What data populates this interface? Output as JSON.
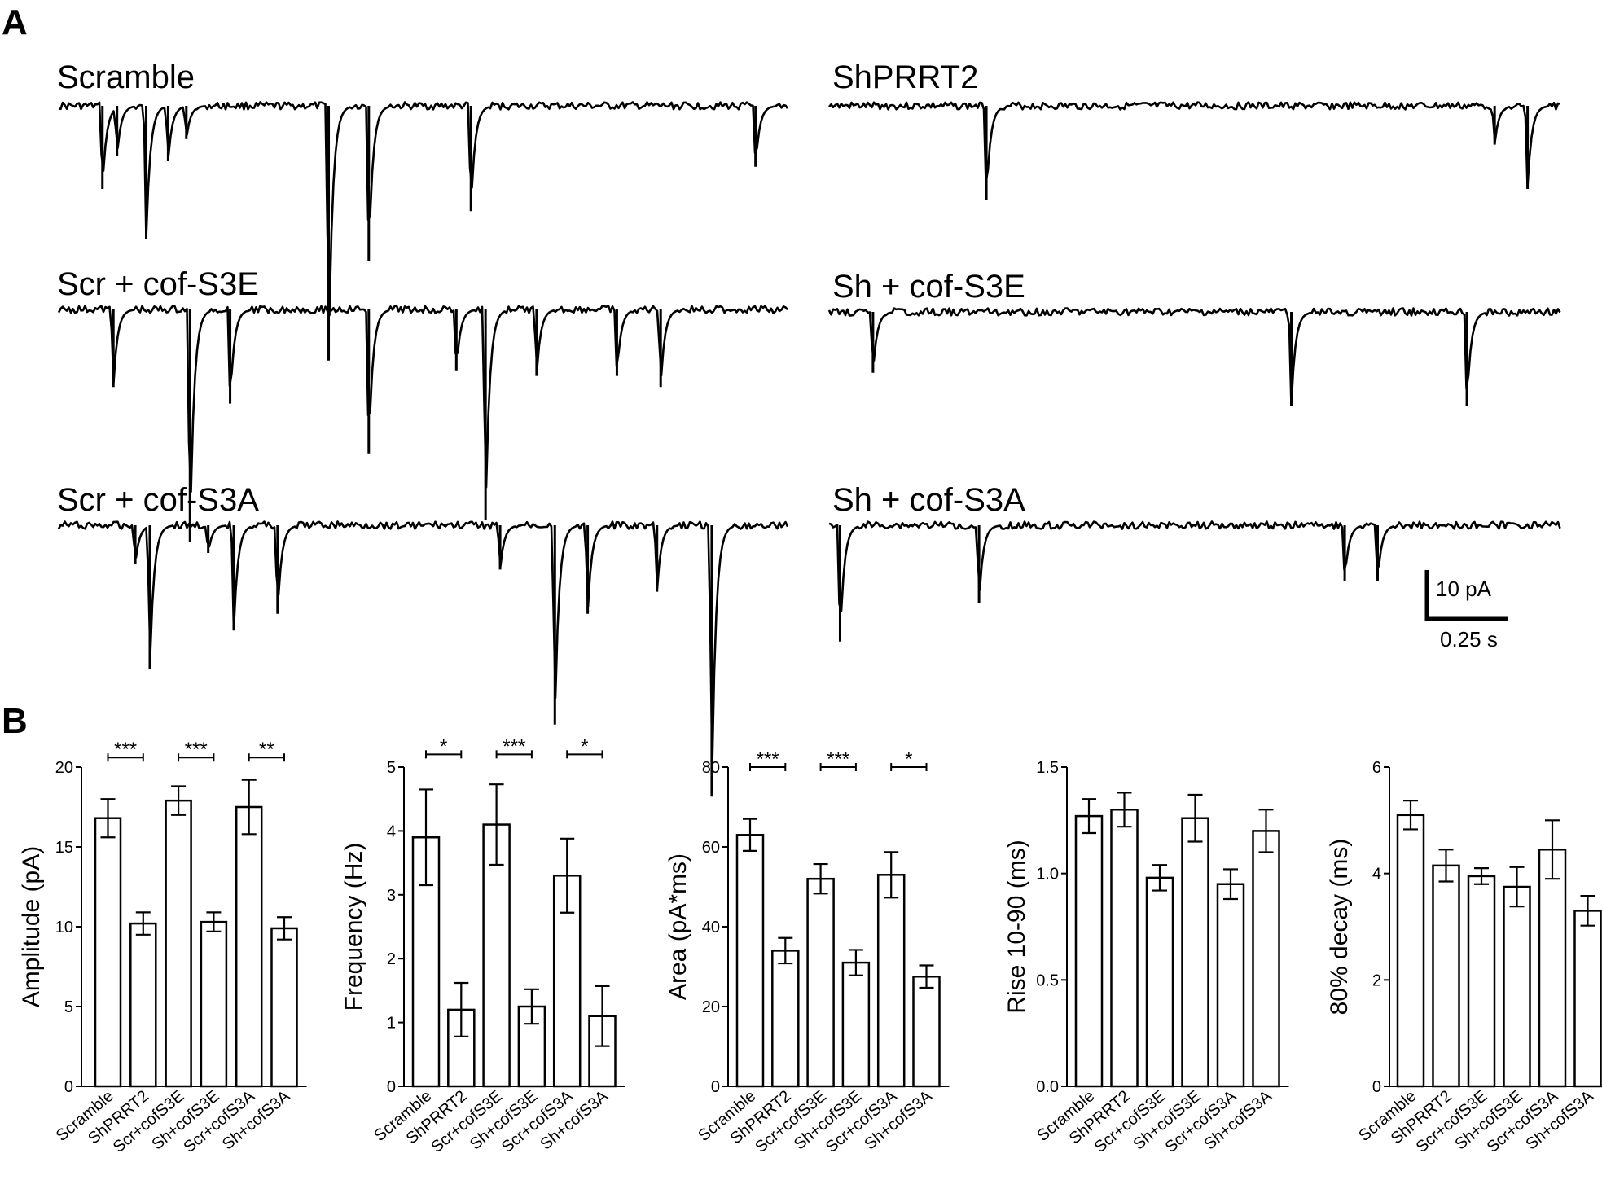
{
  "panels": {
    "a": "A",
    "b": "B"
  },
  "traces": [
    {
      "label": "Scramble",
      "events": [
        [
          0.06,
          15
        ],
        [
          0.08,
          9
        ],
        [
          0.12,
          24
        ],
        [
          0.15,
          10
        ],
        [
          0.175,
          6
        ],
        [
          0.37,
          46
        ],
        [
          0.425,
          28
        ],
        [
          0.565,
          19
        ],
        [
          0.955,
          11
        ]
      ]
    },
    {
      "label": "ShPRRT2",
      "events": [
        [
          0.215,
          17
        ],
        [
          0.91,
          7
        ],
        [
          0.955,
          15
        ]
      ]
    },
    {
      "label": "Scr + cof-S3E",
      "events": [
        [
          0.075,
          14
        ],
        [
          0.18,
          42
        ],
        [
          0.235,
          17
        ],
        [
          0.425,
          26
        ],
        [
          0.545,
          11
        ],
        [
          0.585,
          38
        ],
        [
          0.655,
          12
        ],
        [
          0.765,
          12
        ],
        [
          0.825,
          14
        ]
      ]
    },
    {
      "label": "Sh + cof-S3E",
      "events": [
        [
          0.06,
          11
        ],
        [
          0.632,
          17
        ],
        [
          0.872,
          17
        ]
      ]
    },
    {
      "label": "Scr + cof-S3A",
      "events": [
        [
          0.105,
          7
        ],
        [
          0.125,
          26
        ],
        [
          0.205,
          5
        ],
        [
          0.24,
          19
        ],
        [
          0.3,
          16
        ],
        [
          0.605,
          8
        ],
        [
          0.68,
          36
        ],
        [
          0.725,
          16
        ],
        [
          0.82,
          12
        ],
        [
          0.895,
          49
        ]
      ]
    },
    {
      "label": "Sh + cof-S3A",
      "events": [
        [
          0.015,
          21
        ],
        [
          0.205,
          14
        ],
        [
          0.705,
          10
        ],
        [
          0.75,
          10
        ]
      ]
    }
  ],
  "scalebar": {
    "y_label": "10 pA",
    "x_label": "0.25 s"
  },
  "chart_data": [
    {
      "type": "bar",
      "ylabel": "Amplitude (pA)",
      "ylim": [
        0,
        20
      ],
      "yticks": [
        0,
        5,
        10,
        15,
        20
      ],
      "categories": [
        "Scramble",
        "ShPRRT2",
        "Scr+cofS3E",
        "Sh+cofS3E",
        "Scr+cofS3A",
        "Sh+cofS3A"
      ],
      "values": [
        16.8,
        10.2,
        17.9,
        10.3,
        17.5,
        9.9
      ],
      "errors": [
        1.2,
        0.7,
        0.9,
        0.6,
        1.7,
        0.7
      ],
      "significance": [
        {
          "pair": [
            0,
            1
          ],
          "label": "***"
        },
        {
          "pair": [
            2,
            3
          ],
          "label": "***"
        },
        {
          "pair": [
            4,
            5
          ],
          "label": "**"
        }
      ],
      "sig_y": 20.6
    },
    {
      "type": "bar",
      "ylabel": "Frequency (Hz)",
      "ylim": [
        0,
        5
      ],
      "yticks": [
        0,
        1,
        2,
        3,
        4,
        5
      ],
      "categories": [
        "Scramble",
        "ShPRRT2",
        "Scr+cofS3E",
        "Sh+cofS3E",
        "Scr+cofS3A",
        "Sh+cofS3A"
      ],
      "values": [
        3.9,
        1.2,
        4.1,
        1.25,
        3.3,
        1.1
      ],
      "errors": [
        0.75,
        0.42,
        0.63,
        0.27,
        0.58,
        0.47
      ],
      "significance": [
        {
          "pair": [
            0,
            1
          ],
          "label": "*"
        },
        {
          "pair": [
            2,
            3
          ],
          "label": "***"
        },
        {
          "pair": [
            4,
            5
          ],
          "label": "*"
        }
      ],
      "sig_y": 5.2
    },
    {
      "type": "bar",
      "ylabel": "Area (pA*ms)",
      "ylim": [
        0,
        80
      ],
      "yticks": [
        0,
        20,
        40,
        60,
        80
      ],
      "categories": [
        "Scramble",
        "ShPRRT2",
        "Scr+cofS3E",
        "Sh+cofS3E",
        "Scr+cofS3A",
        "Sh+cofS3A"
      ],
      "values": [
        63,
        34,
        52,
        31,
        53,
        27.5
      ],
      "errors": [
        4,
        3.2,
        3.7,
        3.2,
        5.7,
        2.8
      ],
      "significance": [
        {
          "pair": [
            0,
            1
          ],
          "label": "***"
        },
        {
          "pair": [
            2,
            3
          ],
          "label": "***"
        },
        {
          "pair": [
            4,
            5
          ],
          "label": "*"
        }
      ],
      "sig_y": 80
    },
    {
      "type": "bar",
      "ylabel": "Rise 10-90 (ms)",
      "ylim": [
        0,
        1.5
      ],
      "yticks": [
        "0.0",
        "0.5",
        "1.0",
        "1.5"
      ],
      "categories": [
        "Scramble",
        "ShPRRT2",
        "Scr+cofS3E",
        "Sh+cofS3E",
        "Scr+cofS3A",
        "Sh+cofS3A"
      ],
      "values": [
        1.27,
        1.3,
        0.98,
        1.26,
        0.95,
        1.2
      ],
      "errors": [
        0.08,
        0.08,
        0.06,
        0.11,
        0.07,
        0.1
      ],
      "significance": []
    },
    {
      "type": "bar",
      "ylabel": "80% decay (ms)",
      "ylim": [
        0,
        6
      ],
      "yticks": [
        0,
        2,
        4,
        6
      ],
      "categories": [
        "Scramble",
        "ShPRRT2",
        "Scr+cofS3E",
        "Sh+cofS3E",
        "Scr+cofS3A",
        "Sh+cofS3A"
      ],
      "values": [
        5.1,
        4.15,
        3.95,
        3.75,
        4.45,
        3.3
      ],
      "errors": [
        0.27,
        0.3,
        0.15,
        0.37,
        0.55,
        0.28
      ],
      "significance": []
    }
  ]
}
